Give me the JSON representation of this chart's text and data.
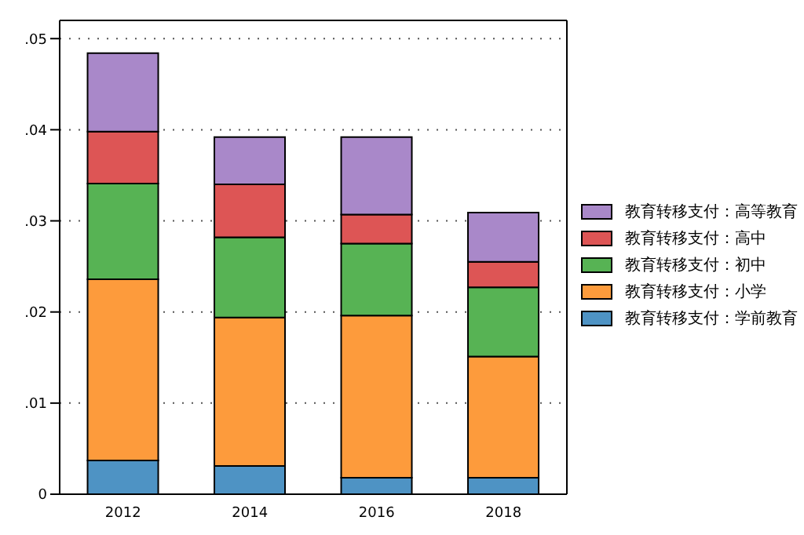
{
  "chart_data": {
    "type": "bar",
    "stacked": true,
    "categories": [
      "2012",
      "2014",
      "2016",
      "2018"
    ],
    "series": [
      {
        "name": "教育转移支付：学前教育",
        "color": "#4e93c4",
        "values": [
          0.0037,
          0.0031,
          0.0018,
          0.0018
        ]
      },
      {
        "name": "教育转移支付：小学",
        "color": "#fd9b3c",
        "values": [
          0.0199,
          0.0163,
          0.0178,
          0.0133
        ]
      },
      {
        "name": "教育转移支付：初中",
        "color": "#57b354",
        "values": [
          0.0105,
          0.0088,
          0.0079,
          0.0076
        ]
      },
      {
        "name": "教育转移支付：高中",
        "color": "#dd5555",
        "values": [
          0.0057,
          0.0058,
          0.0032,
          0.0028
        ]
      },
      {
        "name": "教育转移支付：高等教育",
        "color": "#a988c9",
        "values": [
          0.0086,
          0.0052,
          0.0085,
          0.0054
        ]
      }
    ],
    "ylim": [
      0,
      0.052
    ],
    "yticks": [
      {
        "value": 0,
        "label": "0"
      },
      {
        "value": 0.01,
        "label": ".01"
      },
      {
        "value": 0.02,
        "label": ".02"
      },
      {
        "value": 0.03,
        "label": ".03"
      },
      {
        "value": 0.04,
        "label": ".04"
      },
      {
        "value": 0.05,
        "label": ".05"
      }
    ],
    "grid": "y",
    "legend": "right"
  }
}
